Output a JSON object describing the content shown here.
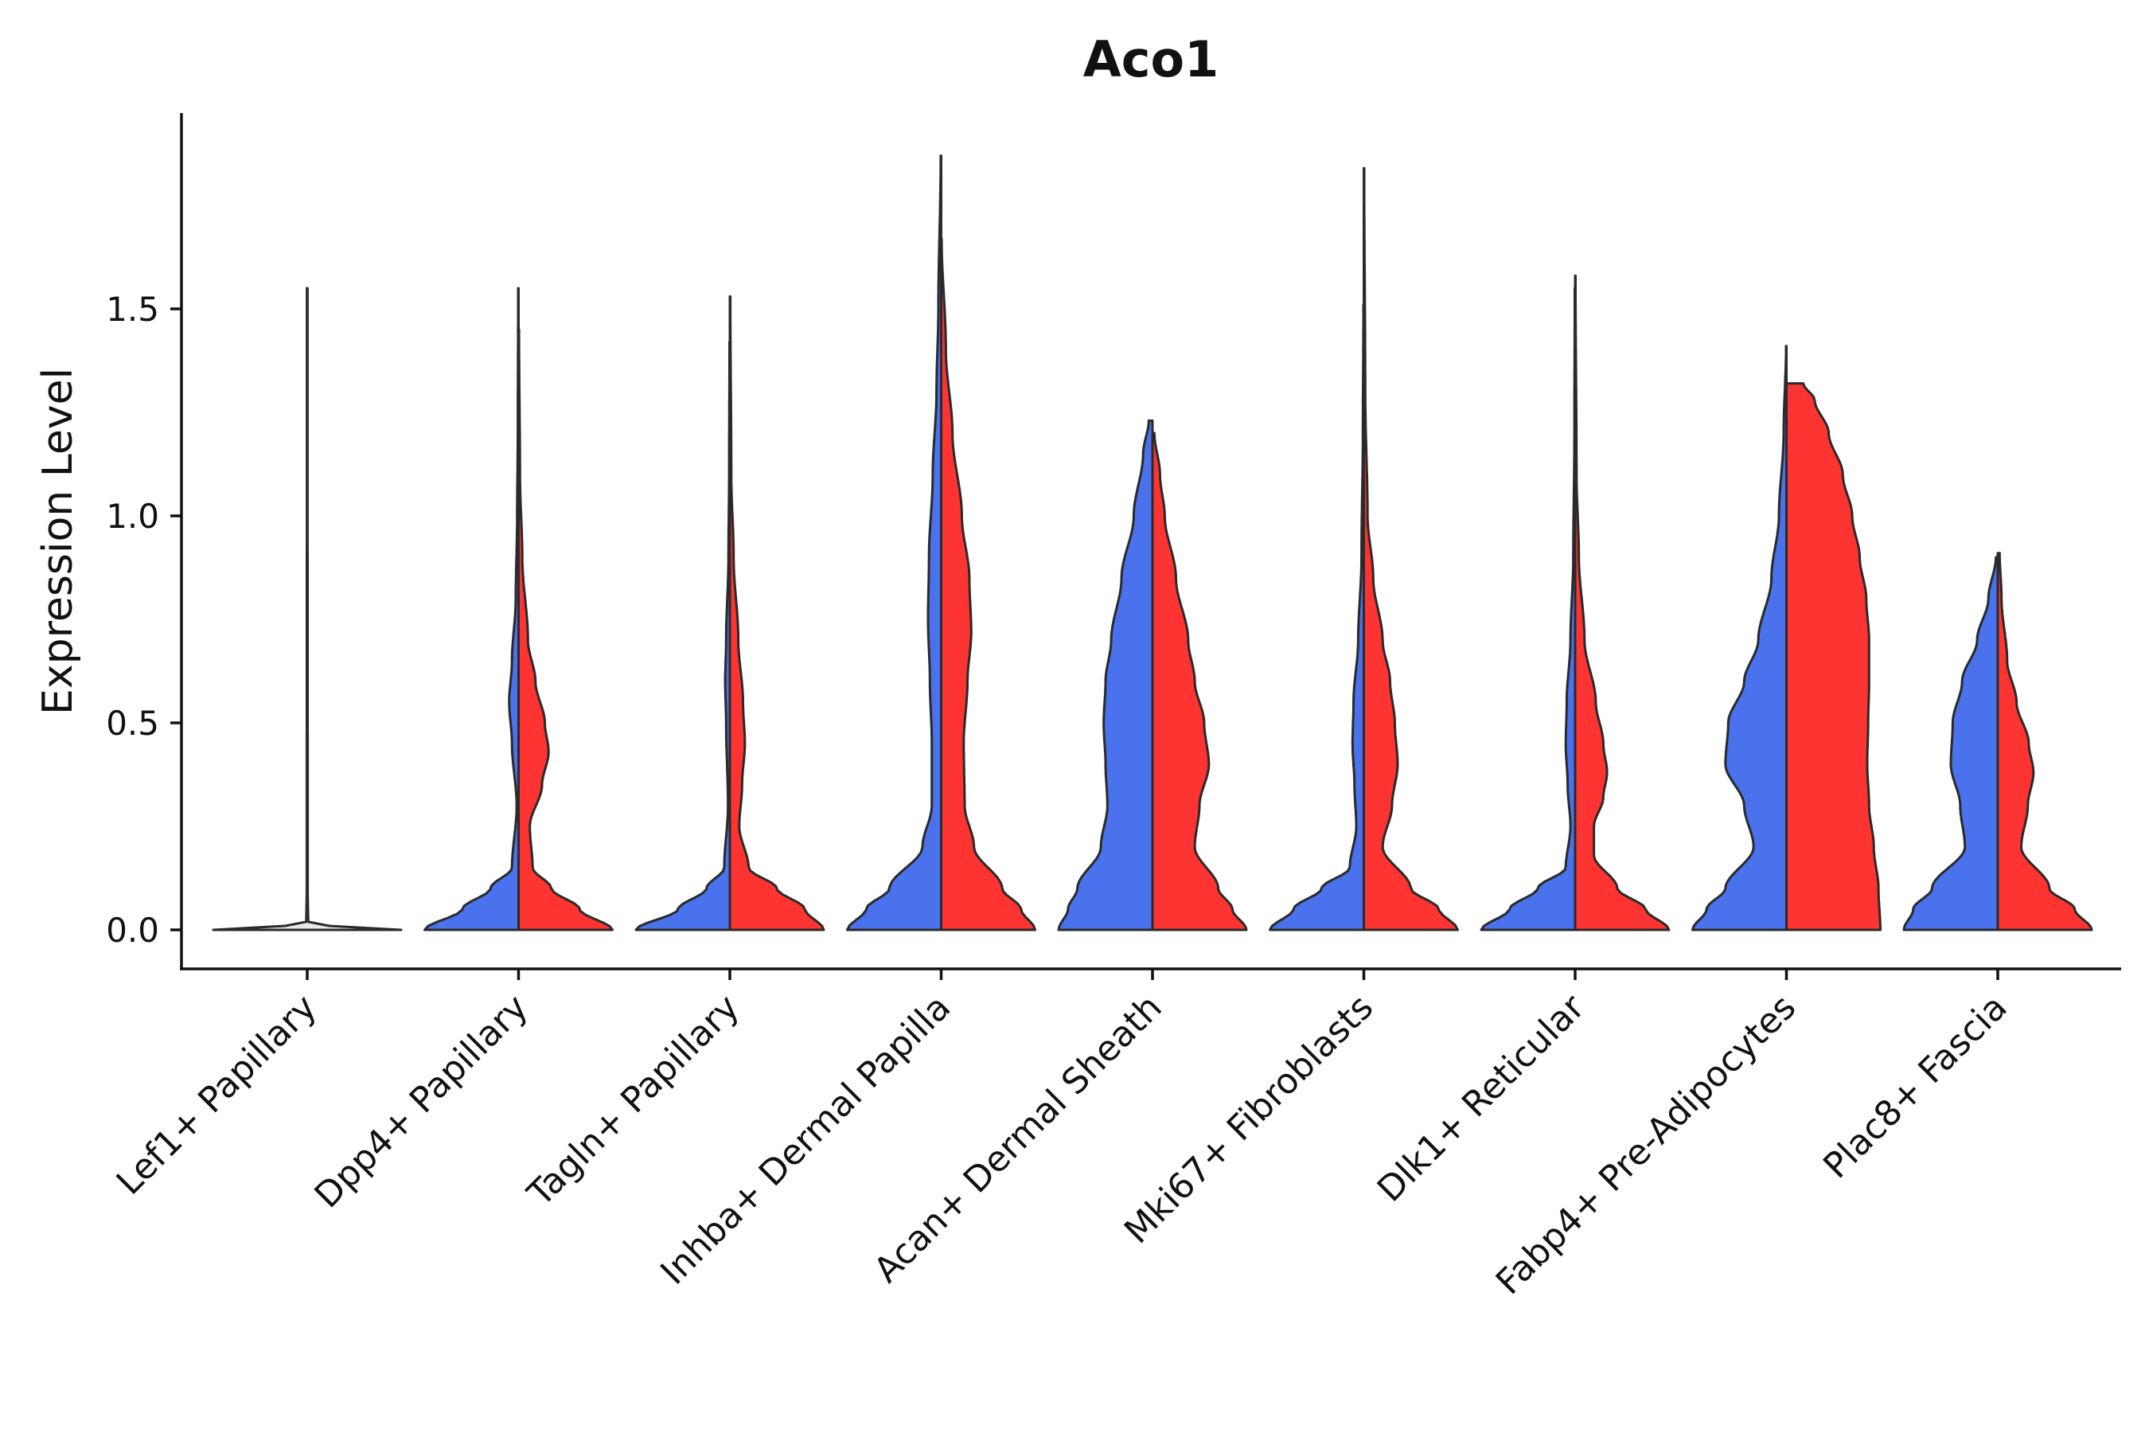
{
  "chart_data": {
    "type": "violin",
    "title": "Aco1",
    "xlabel": "",
    "ylabel": "Expression Level",
    "ylim": [
      -0.095,
      1.97
    ],
    "yticks": [
      "0.0",
      "0.5",
      "1.0",
      "1.5"
    ],
    "ytick_values": [
      0.0,
      0.5,
      1.0,
      1.5
    ],
    "grid": false,
    "legend": "none",
    "colors": {
      "blue": "#4a72ec",
      "red": "#fd3432",
      "single": "#e8e8e8",
      "outline": "#2a2a2a"
    },
    "categories": [
      "Lef1+ Papillary",
      "Dpp4+ Papillary",
      "Tagln+ Papillary",
      "Inhba+ Dermal Papilla",
      "Acan+ Dermal Sheath",
      "Mki67+ Fibroblasts",
      "Dlk1+ Reticular",
      "Fabp4+ Pre-Adipocytes",
      "Plac8+ Fascia"
    ],
    "violins": [
      {
        "category": "Lef1+ Papillary",
        "side": "single",
        "max": 1.55,
        "profile": [
          [
            0,
            1
          ],
          [
            0.005,
            0.3
          ],
          [
            0.02,
            0.01
          ],
          [
            0.1,
            0.005
          ],
          [
            1.55,
            0.003
          ]
        ]
      },
      {
        "category": "Dpp4+ Papillary",
        "side": "left",
        "max": 1.55,
        "profile": [
          [
            0,
            1
          ],
          [
            0.05,
            0.6
          ],
          [
            0.1,
            0.3
          ],
          [
            0.15,
            0.07
          ],
          [
            0.3,
            0.02
          ],
          [
            0.45,
            0.07
          ],
          [
            0.55,
            0.1
          ],
          [
            0.65,
            0.07
          ],
          [
            0.8,
            0.03
          ],
          [
            1.0,
            0.015
          ],
          [
            1.2,
            0.008
          ],
          [
            1.55,
            0.004
          ]
        ]
      },
      {
        "category": "Dpp4+ Papillary",
        "side": "right",
        "max": 1.45,
        "profile": [
          [
            0,
            1
          ],
          [
            0.05,
            0.65
          ],
          [
            0.1,
            0.35
          ],
          [
            0.15,
            0.15
          ],
          [
            0.25,
            0.12
          ],
          [
            0.35,
            0.25
          ],
          [
            0.43,
            0.32
          ],
          [
            0.5,
            0.28
          ],
          [
            0.6,
            0.18
          ],
          [
            0.7,
            0.1
          ],
          [
            0.9,
            0.04
          ],
          [
            1.1,
            0.015
          ],
          [
            1.45,
            0.005
          ]
        ]
      },
      {
        "category": "Tagln+ Papillary",
        "side": "left",
        "max": 1.42,
        "profile": [
          [
            0,
            1
          ],
          [
            0.05,
            0.55
          ],
          [
            0.1,
            0.25
          ],
          [
            0.15,
            0.06
          ],
          [
            0.3,
            0.02
          ],
          [
            0.5,
            0.04
          ],
          [
            0.6,
            0.05
          ],
          [
            0.7,
            0.04
          ],
          [
            0.9,
            0.015
          ],
          [
            1.1,
            0.008
          ],
          [
            1.42,
            0.004
          ]
        ]
      },
      {
        "category": "Tagln+ Papillary",
        "side": "right",
        "max": 1.53,
        "profile": [
          [
            0,
            1
          ],
          [
            0.05,
            0.8
          ],
          [
            0.1,
            0.5
          ],
          [
            0.15,
            0.2
          ],
          [
            0.25,
            0.1
          ],
          [
            0.35,
            0.13
          ],
          [
            0.45,
            0.16
          ],
          [
            0.55,
            0.14
          ],
          [
            0.7,
            0.09
          ],
          [
            0.9,
            0.04
          ],
          [
            1.1,
            0.015
          ],
          [
            1.53,
            0.005
          ]
        ]
      },
      {
        "category": "Inhba+ Dermal Papilla",
        "side": "left",
        "max": 1.87,
        "profile": [
          [
            0,
            1
          ],
          [
            0.05,
            0.8
          ],
          [
            0.1,
            0.55
          ],
          [
            0.2,
            0.2
          ],
          [
            0.3,
            0.1
          ],
          [
            0.45,
            0.1
          ],
          [
            0.6,
            0.12
          ],
          [
            0.75,
            0.14
          ],
          [
            0.9,
            0.13
          ],
          [
            1.1,
            0.09
          ],
          [
            1.3,
            0.05
          ],
          [
            1.5,
            0.03
          ],
          [
            1.87,
            0.005
          ]
        ]
      },
      {
        "category": "Inhba+ Dermal Papilla",
        "side": "right",
        "max": 1.67,
        "profile": [
          [
            0,
            1
          ],
          [
            0.05,
            0.85
          ],
          [
            0.1,
            0.65
          ],
          [
            0.2,
            0.35
          ],
          [
            0.3,
            0.25
          ],
          [
            0.45,
            0.24
          ],
          [
            0.6,
            0.28
          ],
          [
            0.72,
            0.32
          ],
          [
            0.85,
            0.3
          ],
          [
            1.0,
            0.22
          ],
          [
            1.2,
            0.12
          ],
          [
            1.4,
            0.05
          ],
          [
            1.67,
            0.005
          ]
        ]
      },
      {
        "category": "Acan+ Dermal Sheath",
        "side": "left",
        "max": 1.23,
        "profile": [
          [
            0,
            1
          ],
          [
            0.05,
            0.9
          ],
          [
            0.1,
            0.8
          ],
          [
            0.2,
            0.55
          ],
          [
            0.3,
            0.48
          ],
          [
            0.4,
            0.5
          ],
          [
            0.5,
            0.52
          ],
          [
            0.6,
            0.5
          ],
          [
            0.7,
            0.44
          ],
          [
            0.85,
            0.33
          ],
          [
            1.0,
            0.2
          ],
          [
            1.15,
            0.1
          ],
          [
            1.23,
            0.04
          ]
        ]
      },
      {
        "category": "Acan+ Dermal Sheath",
        "side": "right",
        "max": 1.2,
        "profile": [
          [
            0,
            1
          ],
          [
            0.05,
            0.85
          ],
          [
            0.1,
            0.7
          ],
          [
            0.2,
            0.45
          ],
          [
            0.3,
            0.5
          ],
          [
            0.4,
            0.6
          ],
          [
            0.5,
            0.55
          ],
          [
            0.6,
            0.45
          ],
          [
            0.7,
            0.38
          ],
          [
            0.85,
            0.25
          ],
          [
            1.0,
            0.13
          ],
          [
            1.1,
            0.08
          ],
          [
            1.2,
            0.02
          ]
        ]
      },
      {
        "category": "Mki67+ Fibroblasts",
        "side": "left",
        "max": 1.51,
        "profile": [
          [
            0,
            1
          ],
          [
            0.05,
            0.75
          ],
          [
            0.1,
            0.45
          ],
          [
            0.15,
            0.15
          ],
          [
            0.25,
            0.08
          ],
          [
            0.35,
            0.1
          ],
          [
            0.45,
            0.12
          ],
          [
            0.55,
            0.11
          ],
          [
            0.7,
            0.06
          ],
          [
            0.9,
            0.025
          ],
          [
            1.2,
            0.01
          ],
          [
            1.51,
            0.004
          ]
        ]
      },
      {
        "category": "Mki67+ Fibroblasts",
        "side": "right",
        "max": 1.84,
        "profile": [
          [
            0,
            1
          ],
          [
            0.05,
            0.8
          ],
          [
            0.1,
            0.5
          ],
          [
            0.2,
            0.2
          ],
          [
            0.3,
            0.3
          ],
          [
            0.4,
            0.36
          ],
          [
            0.5,
            0.33
          ],
          [
            0.6,
            0.28
          ],
          [
            0.7,
            0.2
          ],
          [
            0.85,
            0.1
          ],
          [
            1.0,
            0.04
          ],
          [
            1.3,
            0.015
          ],
          [
            1.84,
            0.004
          ]
        ]
      },
      {
        "category": "Dlk1+ Reticular",
        "side": "left",
        "max": 1.55,
        "profile": [
          [
            0,
            1
          ],
          [
            0.05,
            0.7
          ],
          [
            0.1,
            0.4
          ],
          [
            0.15,
            0.1
          ],
          [
            0.25,
            0.05
          ],
          [
            0.35,
            0.08
          ],
          [
            0.45,
            0.1
          ],
          [
            0.55,
            0.09
          ],
          [
            0.7,
            0.05
          ],
          [
            0.9,
            0.02
          ],
          [
            1.2,
            0.008
          ],
          [
            1.55,
            0.004
          ]
        ]
      },
      {
        "category": "Dlk1+ Reticular",
        "side": "right",
        "max": 1.58,
        "profile": [
          [
            0,
            1
          ],
          [
            0.05,
            0.75
          ],
          [
            0.1,
            0.45
          ],
          [
            0.18,
            0.2
          ],
          [
            0.25,
            0.2
          ],
          [
            0.32,
            0.3
          ],
          [
            0.38,
            0.34
          ],
          [
            0.45,
            0.3
          ],
          [
            0.55,
            0.22
          ],
          [
            0.7,
            0.1
          ],
          [
            0.9,
            0.04
          ],
          [
            1.1,
            0.015
          ],
          [
            1.58,
            0.004
          ]
        ]
      },
      {
        "category": "Fabp4+ Pre-Adipocytes",
        "side": "left",
        "max": 1.41,
        "profile": [
          [
            0,
            1
          ],
          [
            0.05,
            0.85
          ],
          [
            0.1,
            0.65
          ],
          [
            0.2,
            0.35
          ],
          [
            0.3,
            0.45
          ],
          [
            0.4,
            0.65
          ],
          [
            0.5,
            0.62
          ],
          [
            0.6,
            0.45
          ],
          [
            0.7,
            0.3
          ],
          [
            0.85,
            0.16
          ],
          [
            1.0,
            0.08
          ],
          [
            1.2,
            0.03
          ],
          [
            1.41,
            0.004
          ]
        ]
      },
      {
        "category": "Fabp4+ Pre-Adipocytes",
        "side": "right",
        "max": 1.32,
        "profile": [
          [
            0,
            1
          ],
          [
            0.1,
            0.98
          ],
          [
            0.2,
            0.93
          ],
          [
            0.3,
            0.88
          ],
          [
            0.4,
            0.86
          ],
          [
            0.5,
            0.87
          ],
          [
            0.6,
            0.88
          ],
          [
            0.7,
            0.88
          ],
          [
            0.8,
            0.85
          ],
          [
            0.9,
            0.78
          ],
          [
            1.0,
            0.7
          ],
          [
            1.1,
            0.6
          ],
          [
            1.2,
            0.45
          ],
          [
            1.28,
            0.3
          ],
          [
            1.32,
            0.18
          ]
        ]
      },
      {
        "category": "Plac8+ Fascia",
        "side": "left",
        "max": 0.9,
        "profile": [
          [
            0,
            1
          ],
          [
            0.05,
            0.9
          ],
          [
            0.1,
            0.7
          ],
          [
            0.2,
            0.35
          ],
          [
            0.3,
            0.4
          ],
          [
            0.4,
            0.5
          ],
          [
            0.5,
            0.48
          ],
          [
            0.6,
            0.38
          ],
          [
            0.7,
            0.22
          ],
          [
            0.8,
            0.1
          ],
          [
            0.9,
            0.02
          ]
        ]
      },
      {
        "category": "Plac8+ Fascia",
        "side": "right",
        "max": 0.91,
        "profile": [
          [
            0,
            1
          ],
          [
            0.05,
            0.82
          ],
          [
            0.1,
            0.55
          ],
          [
            0.2,
            0.25
          ],
          [
            0.3,
            0.32
          ],
          [
            0.38,
            0.38
          ],
          [
            0.45,
            0.33
          ],
          [
            0.55,
            0.2
          ],
          [
            0.65,
            0.1
          ],
          [
            0.8,
            0.04
          ],
          [
            0.91,
            0.02
          ]
        ]
      }
    ]
  }
}
